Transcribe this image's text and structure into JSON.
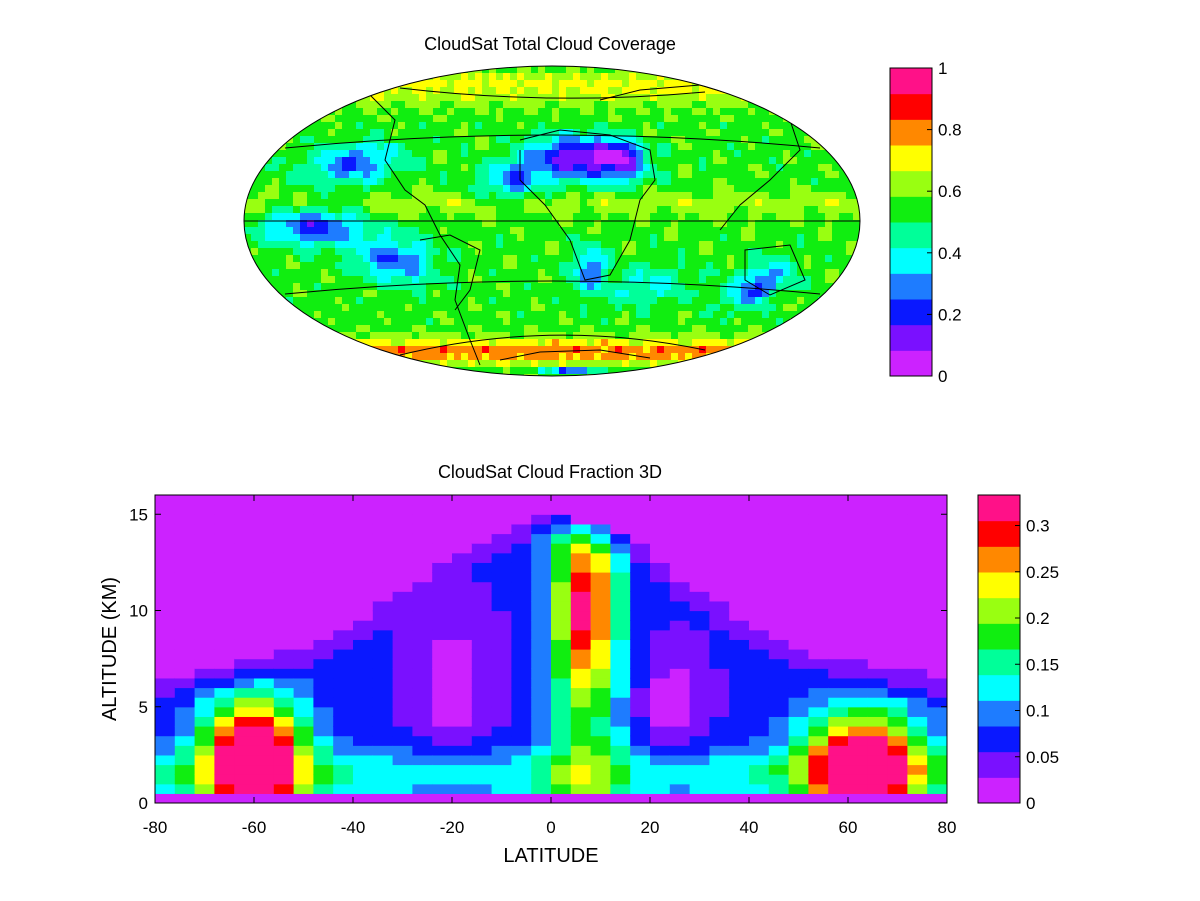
{
  "palette": [
    "#cc22ff",
    "#7a10ff",
    "#0a18ff",
    "#1e7cff",
    "#00ffff",
    "#00ff99",
    "#10ee10",
    "#99ff11",
    "#ffff00",
    "#ff8800",
    "#ff0000",
    "#ff1188"
  ],
  "chart_data": [
    {
      "type": "heatmap",
      "title": "CloudSat Total Cloud Coverage",
      "projection": "mollweide",
      "colorbar": {
        "min": 0,
        "max": 1,
        "levels": 12,
        "ticks": [
          "0",
          "0.2",
          "0.4",
          "0.6",
          "0.8",
          "1"
        ]
      },
      "notes_values": "Global map: low coverage (0–0.3) over Sahara/Arabia, subtropical eastern oceans and Australia; high coverage (0.7–1) over Southern Ocean storm track and high northern latitudes."
    },
    {
      "type": "heatmap",
      "title": "CloudSat Cloud Fraction 3D",
      "xlabel": "LATITUDE",
      "ylabel": "ALTITUDE (KM)",
      "xlim": [
        -80,
        80
      ],
      "ylim": [
        0,
        16
      ],
      "xticks": [
        "-80",
        "-60",
        "-40",
        "-20",
        "0",
        "20",
        "40",
        "60",
        "80"
      ],
      "yticks": [
        "0",
        "5",
        "10",
        "15"
      ],
      "colorbar": {
        "min": 0,
        "max": 0.333,
        "levels": 12,
        "ticks": [
          "0",
          "0.05",
          "0.1",
          "0.15",
          "0.2",
          "0.25",
          "0.3"
        ]
      }
    }
  ]
}
